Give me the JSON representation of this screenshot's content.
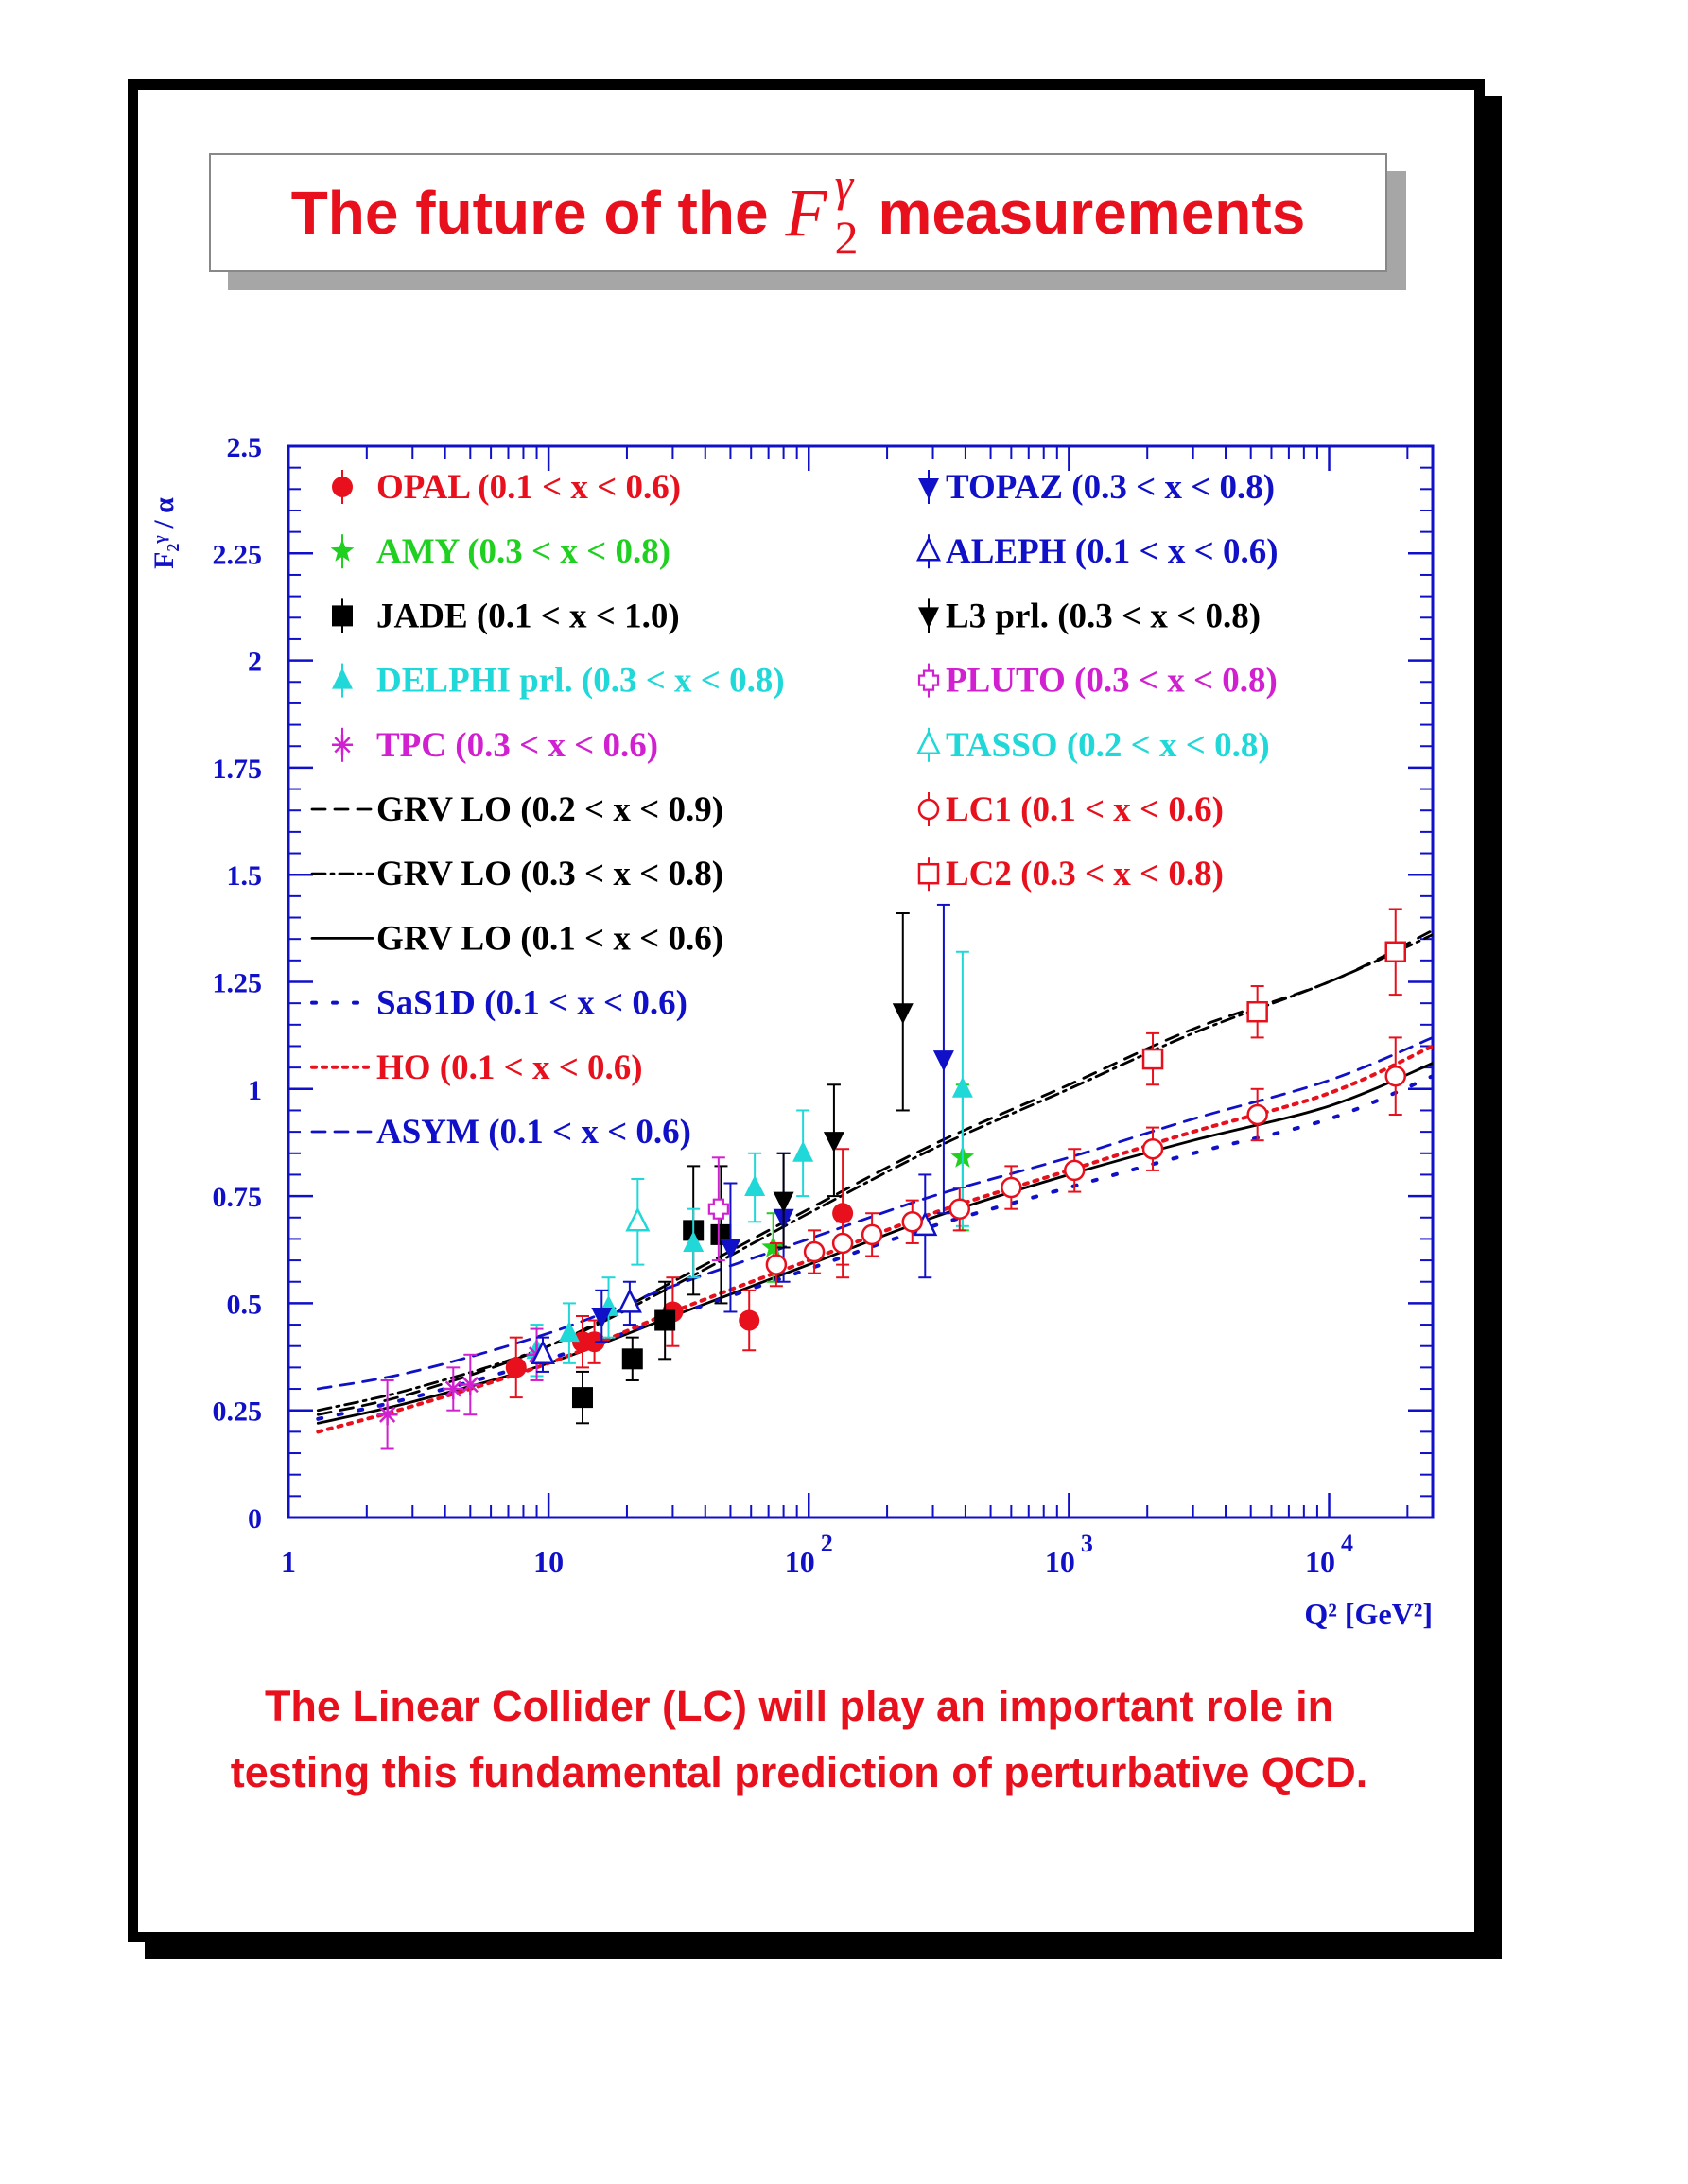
{
  "title": {
    "text_before": "The future of the",
    "math_main": "F",
    "math_sup": "γ",
    "math_sub": "2",
    "text_after": "measurements"
  },
  "caption": "The Linear Collider (LC) will play an important role in testing this fundamental prediction of perturbative QCD.",
  "colors": {
    "title": "#e8101c",
    "axis": "#1010c8",
    "red": "#e8101c",
    "green": "#20d020",
    "black": "#000000",
    "cyan": "#20d8d8",
    "magenta": "#d020d0",
    "blue": "#1010c8"
  },
  "chart_data": {
    "type": "scatter",
    "xscale": "log",
    "xlim": [
      1,
      25000
    ],
    "ylim": [
      0,
      2.5
    ],
    "xlabel": "Q² [GeV²]",
    "ylabel": "F₂ᵞ / α",
    "xticks": [
      "1",
      "10",
      "10²",
      "10³",
      "10⁴"
    ],
    "yticks": [
      "0",
      "0.25",
      "0.5",
      "0.75",
      "1",
      "1.25",
      "1.5",
      "1.75",
      "2",
      "2.25",
      "2.5"
    ],
    "legend_left": [
      {
        "label": "OPAL (0.1 < x < 0.6)",
        "color": "#e8101c",
        "marker": "circle"
      },
      {
        "label": "AMY (0.3 < x < 0.8)",
        "color": "#20d020",
        "marker": "star"
      },
      {
        "label": "JADE (0.1 < x < 1.0)",
        "color": "#000000",
        "marker": "square"
      },
      {
        "label": "DELPHI prl. (0.3 < x < 0.8)",
        "color": "#20d8d8",
        "marker": "triangle-up"
      },
      {
        "label": "TPC (0.3 < x < 0.6)",
        "color": "#d020d0",
        "marker": "asterisk"
      },
      {
        "label": "GRV LO (0.2 < x < 0.9)",
        "color": "#000000",
        "marker": "line-dashed"
      },
      {
        "label": "GRV LO (0.3 < x < 0.8)",
        "color": "#000000",
        "marker": "line-dashdot"
      },
      {
        "label": "GRV LO (0.1 < x < 0.6)",
        "color": "#000000",
        "marker": "line-solid"
      },
      {
        "label": "SaS1D (0.1 < x < 0.6)",
        "color": "#1010c8",
        "marker": "line-dotted-sparse"
      },
      {
        "label": "HO (0.1 < x < 0.6)",
        "color": "#e8101c",
        "marker": "line-dotted"
      },
      {
        "label": "ASYM (0.1 < x < 0.6)",
        "color": "#1010c8",
        "marker": "line-dashed"
      }
    ],
    "legend_right": [
      {
        "label": "TOPAZ (0.3 < x < 0.8)",
        "color": "#1010c8",
        "marker": "triangle-down"
      },
      {
        "label": "ALEPH (0.1 < x < 0.6)",
        "color": "#1010c8",
        "marker": "triangle-up-open"
      },
      {
        "label": "L3 prl. (0.3 < x < 0.8)",
        "color": "#000000",
        "marker": "triangle-down"
      },
      {
        "label": "PLUTO (0.3 < x < 0.8)",
        "color": "#d020d0",
        "marker": "cross-open"
      },
      {
        "label": "TASSO (0.2 < x < 0.8)",
        "color": "#20d8d8",
        "marker": "triangle-up-open"
      },
      {
        "label": "LC1 (0.1 < x < 0.6)",
        "color": "#e8101c",
        "marker": "circle-open"
      },
      {
        "label": "LC2 (0.3 < x < 0.8)",
        "color": "#e8101c",
        "marker": "square-open"
      }
    ],
    "series": [
      {
        "name": "OPAL (0.1 < x < 0.6)",
        "marker": "circle",
        "color": "#e8101c",
        "points": [
          [
            7.5,
            0.35,
            0.07
          ],
          [
            13.5,
            0.41,
            0.06
          ],
          [
            15,
            0.41,
            0.05
          ],
          [
            30,
            0.48,
            0.08
          ],
          [
            59,
            0.46,
            0.07
          ],
          [
            135,
            0.71,
            0.15
          ]
        ]
      },
      {
        "name": "AMY (0.3 < x < 0.8)",
        "marker": "star",
        "color": "#20d020",
        "points": [
          [
            73,
            0.63,
            0.08
          ],
          [
            390,
            0.84,
            0.17
          ]
        ]
      },
      {
        "name": "JADE (0.1 < x < 1.0)",
        "marker": "square",
        "color": "#000000",
        "points": [
          [
            13.5,
            0.28,
            0.06
          ],
          [
            21,
            0.37,
            0.05
          ],
          [
            28,
            0.46,
            0.09
          ],
          [
            36,
            0.67,
            0.15
          ],
          [
            46,
            0.66,
            0.16
          ]
        ]
      },
      {
        "name": "DELPHI prl. (0.3 < x < 0.8)",
        "marker": "triangle-up",
        "color": "#20d8d8",
        "points": [
          [
            9,
            0.39,
            0.06
          ],
          [
            12,
            0.43,
            0.07
          ],
          [
            17,
            0.49,
            0.07
          ],
          [
            36,
            0.64,
            0.08
          ],
          [
            62,
            0.77,
            0.08
          ],
          [
            95,
            0.85,
            0.1
          ],
          [
            390,
            1.0,
            0.32
          ]
        ]
      },
      {
        "name": "TPC (0.3 < x < 0.6)",
        "marker": "asterisk",
        "color": "#d020d0",
        "points": [
          [
            2.4,
            0.24,
            0.08
          ],
          [
            4.3,
            0.3,
            0.05
          ],
          [
            5,
            0.31,
            0.07
          ],
          [
            9,
            0.38,
            0.06
          ]
        ]
      },
      {
        "name": "TOPAZ (0.3 < x < 0.8)",
        "marker": "triangle-down",
        "color": "#1010c8",
        "points": [
          [
            16,
            0.47,
            0.06
          ],
          [
            50,
            0.63,
            0.15
          ],
          [
            80,
            0.7,
            0.15
          ],
          [
            330,
            1.07,
            0.36
          ]
        ]
      },
      {
        "name": "ALEPH (0.1 < x < 0.6)",
        "marker": "triangle-up-open",
        "color": "#1010c8",
        "points": [
          [
            9.5,
            0.38,
            0.04
          ],
          [
            20.5,
            0.5,
            0.05
          ],
          [
            280,
            0.68,
            0.12
          ]
        ]
      },
      {
        "name": "L3 prl. (0.3 < x < 0.8)",
        "marker": "triangle-down",
        "color": "#000000",
        "points": [
          [
            80,
            0.74,
            0.11
          ],
          [
            125,
            0.88,
            0.13
          ],
          [
            230,
            1.18,
            0.23
          ]
        ]
      },
      {
        "name": "PLUTO (0.3 < x < 0.8)",
        "marker": "cross-open",
        "color": "#d020d0",
        "points": [
          [
            45,
            0.72,
            0.12
          ]
        ]
      },
      {
        "name": "TASSO (0.2 < x < 0.8)",
        "marker": "triangle-up-open",
        "color": "#20d8d8",
        "points": [
          [
            22,
            0.69,
            0.1
          ]
        ]
      },
      {
        "name": "LC1 (0.1 < x < 0.6)",
        "marker": "circle-open",
        "color": "#e8101c",
        "points": [
          [
            75,
            0.59,
            0.05
          ],
          [
            105,
            0.62,
            0.05
          ],
          [
            135,
            0.64,
            0.05
          ],
          [
            175,
            0.66,
            0.05
          ],
          [
            250,
            0.69,
            0.05
          ],
          [
            380,
            0.72,
            0.05
          ],
          [
            600,
            0.77,
            0.05
          ],
          [
            1050,
            0.81,
            0.05
          ],
          [
            2100,
            0.86,
            0.05
          ],
          [
            5300,
            0.94,
            0.06
          ],
          [
            18000,
            1.03,
            0.09
          ]
        ]
      },
      {
        "name": "LC2 (0.3 < x < 0.8)",
        "marker": "square-open",
        "color": "#e8101c",
        "points": [
          [
            2100,
            1.07,
            0.06
          ],
          [
            5300,
            1.18,
            0.06
          ],
          [
            18000,
            1.32,
            0.1
          ]
        ]
      }
    ],
    "curves": [
      {
        "name": "GRV LO (0.2 < x < 0.9)",
        "style": "dashed",
        "color": "#000000",
        "points": [
          [
            1.3,
            0.24
          ],
          [
            3,
            0.29
          ],
          [
            10,
            0.4
          ],
          [
            30,
            0.55
          ],
          [
            100,
            0.72
          ],
          [
            300,
            0.87
          ],
          [
            1000,
            1.01
          ],
          [
            3000,
            1.14
          ],
          [
            10000,
            1.25
          ],
          [
            25000,
            1.37
          ]
        ]
      },
      {
        "name": "GRV LO (0.3 < x < 0.8)",
        "style": "dashdot",
        "color": "#000000",
        "points": [
          [
            1.3,
            0.25
          ],
          [
            3,
            0.3
          ],
          [
            10,
            0.4
          ],
          [
            30,
            0.54
          ],
          [
            100,
            0.71
          ],
          [
            300,
            0.86
          ],
          [
            1000,
            1.0
          ],
          [
            3000,
            1.13
          ],
          [
            10000,
            1.25
          ],
          [
            25000,
            1.36
          ]
        ]
      },
      {
        "name": "GRV LO (0.1 < x < 0.6)",
        "style": "solid",
        "color": "#000000",
        "points": [
          [
            1.3,
            0.22
          ],
          [
            3,
            0.27
          ],
          [
            10,
            0.36
          ],
          [
            30,
            0.47
          ],
          [
            100,
            0.59
          ],
          [
            300,
            0.7
          ],
          [
            1000,
            0.8
          ],
          [
            3000,
            0.88
          ],
          [
            10000,
            0.96
          ],
          [
            25000,
            1.06
          ]
        ]
      },
      {
        "name": "SaS1D (0.1 < x < 0.6)",
        "style": "dotted-sparse",
        "color": "#1010c8",
        "points": [
          [
            1.3,
            0.23
          ],
          [
            3,
            0.28
          ],
          [
            10,
            0.37
          ],
          [
            30,
            0.47
          ],
          [
            100,
            0.58
          ],
          [
            300,
            0.68
          ],
          [
            1000,
            0.77
          ],
          [
            3000,
            0.85
          ],
          [
            10000,
            0.93
          ],
          [
            25000,
            1.03
          ]
        ]
      },
      {
        "name": "HO (0.1 < x < 0.6)",
        "style": "dotted",
        "color": "#e8101c",
        "points": [
          [
            1.3,
            0.2
          ],
          [
            3,
            0.26
          ],
          [
            10,
            0.36
          ],
          [
            30,
            0.48
          ],
          [
            100,
            0.6
          ],
          [
            300,
            0.71
          ],
          [
            1000,
            0.81
          ],
          [
            3000,
            0.9
          ],
          [
            10000,
            0.99
          ],
          [
            25000,
            1.1
          ]
        ]
      },
      {
        "name": "ASYM (0.1 < x < 0.6)",
        "style": "dashed",
        "color": "#1010c8",
        "points": [
          [
            1.3,
            0.3
          ],
          [
            3,
            0.34
          ],
          [
            10,
            0.43
          ],
          [
            30,
            0.54
          ],
          [
            100,
            0.65
          ],
          [
            300,
            0.75
          ],
          [
            1000,
            0.84
          ],
          [
            3000,
            0.93
          ],
          [
            10000,
            1.02
          ],
          [
            25000,
            1.12
          ]
        ]
      }
    ]
  }
}
